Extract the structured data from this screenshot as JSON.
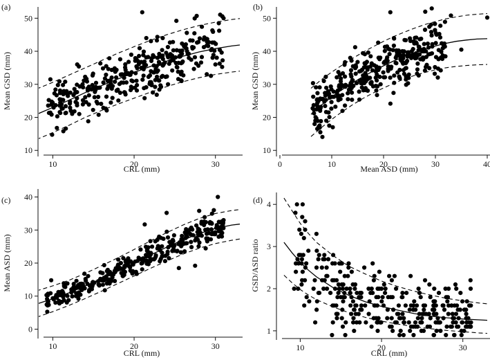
{
  "chart_data": [
    {
      "panel_label": "(a)",
      "type": "scatter",
      "xlabel": "CRL (mm)",
      "ylabel": "Mean GSD (mm)",
      "xlim": [
        7.5,
        33
      ],
      "ylim": [
        9,
        53
      ],
      "xticks": [
        10,
        20,
        30
      ],
      "yticks": [
        10,
        20,
        30,
        40,
        50
      ],
      "grid": false,
      "curves": {
        "fitted": [
          [
            8,
            20.9
          ],
          [
            10,
            23.0
          ],
          [
            12,
            25.2
          ],
          [
            14,
            27.5
          ],
          [
            16,
            29.6
          ],
          [
            18,
            31.6
          ],
          [
            20,
            33.6
          ],
          [
            22,
            35.4
          ],
          [
            24,
            37.0
          ],
          [
            26,
            38.5
          ],
          [
            28,
            39.8
          ],
          [
            30,
            40.8
          ],
          [
            32,
            41.6
          ],
          [
            33,
            41.9
          ]
        ],
        "upper": [
          [
            8,
            28.6
          ],
          [
            10,
            30.6
          ],
          [
            12,
            32.8
          ],
          [
            14,
            35.0
          ],
          [
            16,
            37.2
          ],
          [
            18,
            39.4
          ],
          [
            20,
            41.4
          ],
          [
            22,
            43.3
          ],
          [
            24,
            45.0
          ],
          [
            26,
            46.5
          ],
          [
            28,
            47.8
          ],
          [
            30,
            48.8
          ],
          [
            32,
            49.6
          ],
          [
            33,
            49.9
          ]
        ],
        "lower": [
          [
            8,
            13.3
          ],
          [
            10,
            15.4
          ],
          [
            12,
            17.6
          ],
          [
            14,
            20.0
          ],
          [
            16,
            22.1
          ],
          [
            18,
            24.0
          ],
          [
            20,
            25.8
          ],
          [
            22,
            27.6
          ],
          [
            24,
            29.3
          ],
          [
            26,
            30.8
          ],
          [
            28,
            32.0
          ],
          [
            30,
            33.0
          ],
          [
            32,
            33.7
          ],
          [
            33,
            34.0
          ]
        ]
      },
      "points": {
        "generator": "fit_with_scatter",
        "seed": 101,
        "n": 340,
        "x_range": [
          9.2,
          31
        ],
        "spread": 4.4,
        "highlights": [
          [
            21,
            51.8
          ],
          [
            27.7,
            50.7
          ],
          [
            11.3,
            15.8
          ],
          [
            25.2,
            49.2
          ],
          [
            31,
            50.0
          ],
          [
            9.7,
            31.5
          ],
          [
            30,
            36
          ],
          [
            21.5,
            44
          ],
          [
            13,
            36
          ],
          [
            10.5,
            16.8
          ]
        ]
      }
    },
    {
      "panel_label": "(b)",
      "type": "scatter",
      "xlabel": "Mean ASD (mm)",
      "ylabel": "Mean GSD (mm)",
      "xlim": [
        0,
        40
      ],
      "ylim": [
        9,
        53
      ],
      "xticks": [
        0,
        10,
        20,
        30,
        40
      ],
      "yticks": [
        10,
        20,
        30,
        40,
        50
      ],
      "grid": false,
      "curves": {
        "fitted": [
          [
            6,
            20.9
          ],
          [
            8,
            23.7
          ],
          [
            10,
            26.2
          ],
          [
            12,
            28.4
          ],
          [
            14,
            30.4
          ],
          [
            16,
            32.3
          ],
          [
            18,
            34.0
          ],
          [
            20,
            35.6
          ],
          [
            22,
            37.1
          ],
          [
            24,
            38.4
          ],
          [
            26,
            39.6
          ],
          [
            28,
            40.7
          ],
          [
            30,
            41.6
          ],
          [
            32,
            42.4
          ],
          [
            34,
            43.0
          ],
          [
            36,
            43.4
          ],
          [
            38,
            43.7
          ],
          [
            40,
            43.8
          ]
        ],
        "upper": [
          [
            6,
            28.8
          ],
          [
            8,
            31.4
          ],
          [
            10,
            33.7
          ],
          [
            12,
            35.8
          ],
          [
            14,
            37.8
          ],
          [
            16,
            39.7
          ],
          [
            18,
            41.4
          ],
          [
            20,
            43.0
          ],
          [
            22,
            44.5
          ],
          [
            24,
            45.8
          ],
          [
            26,
            47.0
          ],
          [
            28,
            48.1
          ],
          [
            30,
            49.0
          ],
          [
            32,
            49.8
          ],
          [
            34,
            50.4
          ],
          [
            36,
            50.9
          ],
          [
            38,
            51.2
          ],
          [
            40,
            51.4
          ]
        ],
        "lower": [
          [
            6,
            14.2
          ],
          [
            8,
            16.9
          ],
          [
            10,
            19.4
          ],
          [
            12,
            21.7
          ],
          [
            14,
            23.8
          ],
          [
            16,
            25.7
          ],
          [
            18,
            27.4
          ],
          [
            20,
            28.9
          ],
          [
            22,
            30.3
          ],
          [
            24,
            31.6
          ],
          [
            26,
            32.7
          ],
          [
            28,
            33.6
          ],
          [
            30,
            34.4
          ],
          [
            32,
            35.0
          ],
          [
            34,
            35.4
          ],
          [
            36,
            35.7
          ],
          [
            38,
            35.9
          ],
          [
            40,
            36.0
          ]
        ]
      },
      "points": {
        "generator": "fit_with_scatter",
        "seed": 202,
        "n": 340,
        "x_range": [
          6.3,
          32
        ],
        "spread": 4.3,
        "highlights": [
          [
            21.3,
            51.8
          ],
          [
            40,
            50.2
          ],
          [
            33,
            50.8
          ],
          [
            35,
            40.5
          ],
          [
            7.8,
            15.5
          ],
          [
            10.2,
            17
          ],
          [
            22,
            44
          ],
          [
            28,
            46.5
          ]
        ]
      }
    },
    {
      "panel_label": "(c)",
      "type": "scatter",
      "xlabel": "CRL (mm)",
      "ylabel": "Mean ASD (mm)",
      "xlim": [
        7.5,
        33
      ],
      "ylim": [
        -2,
        42
      ],
      "xticks": [
        10,
        20,
        30
      ],
      "yticks": [
        0,
        10,
        20,
        30,
        40
      ],
      "grid": false,
      "curves": {
        "fitted": [
          [
            8,
            7.6
          ],
          [
            10,
            9.2
          ],
          [
            12,
            11.0
          ],
          [
            14,
            13.1
          ],
          [
            16,
            15.3
          ],
          [
            18,
            17.6
          ],
          [
            20,
            20.0
          ],
          [
            22,
            22.4
          ],
          [
            24,
            24.8
          ],
          [
            26,
            27.0
          ],
          [
            28,
            28.9
          ],
          [
            30,
            30.5
          ],
          [
            32,
            31.5
          ],
          [
            33,
            31.8
          ]
        ],
        "upper": [
          [
            8,
            11.6
          ],
          [
            10,
            13.1
          ],
          [
            12,
            14.8
          ],
          [
            14,
            16.9
          ],
          [
            16,
            19.2
          ],
          [
            18,
            21.6
          ],
          [
            20,
            24.1
          ],
          [
            22,
            26.7
          ],
          [
            24,
            29.2
          ],
          [
            26,
            31.5
          ],
          [
            28,
            33.5
          ],
          [
            30,
            35.0
          ],
          [
            32,
            35.9
          ],
          [
            33,
            36.2
          ]
        ],
        "lower": [
          [
            8,
            3.6
          ],
          [
            10,
            5.3
          ],
          [
            12,
            7.2
          ],
          [
            14,
            9.3
          ],
          [
            16,
            11.5
          ],
          [
            18,
            13.8
          ],
          [
            20,
            16.1
          ],
          [
            22,
            18.4
          ],
          [
            24,
            20.6
          ],
          [
            26,
            22.7
          ],
          [
            28,
            24.5
          ],
          [
            30,
            25.9
          ],
          [
            32,
            26.9
          ],
          [
            33,
            27.3
          ]
        ]
      },
      "points": {
        "generator": "fit_with_scatter",
        "seed": 303,
        "n": 350,
        "x_range": [
          9.2,
          31
        ],
        "spread": 2.0,
        "highlights": [
          [
            30.3,
            40.0
          ],
          [
            28,
            35.8
          ],
          [
            21.3,
            31.7
          ],
          [
            24,
            35.2
          ],
          [
            27.5,
            19.2
          ],
          [
            9.8,
            14.8
          ],
          [
            25.5,
            18.5
          ],
          [
            31,
            33
          ]
        ]
      }
    },
    {
      "panel_label": "(d)",
      "type": "scatter",
      "xlabel": "CRL (mm)",
      "ylabel": "GSD/ASD ratio",
      "xlim": [
        7.5,
        33
      ],
      "ylim": [
        0.85,
        4.25
      ],
      "xticks": [
        10,
        20,
        30
      ],
      "yticks": [
        1,
        2,
        3,
        4
      ],
      "grid": false,
      "curves": {
        "fitted": [
          [
            8,
            3.1
          ],
          [
            9,
            2.85
          ],
          [
            10,
            2.63
          ],
          [
            11,
            2.44
          ],
          [
            12,
            2.28
          ],
          [
            14,
            2.03
          ],
          [
            16,
            1.84
          ],
          [
            18,
            1.69
          ],
          [
            20,
            1.58
          ],
          [
            22,
            1.49
          ],
          [
            24,
            1.41
          ],
          [
            26,
            1.35
          ],
          [
            28,
            1.31
          ],
          [
            30,
            1.28
          ],
          [
            32,
            1.26
          ],
          [
            33,
            1.25
          ]
        ],
        "upper": [
          [
            8,
            4.15
          ],
          [
            9,
            3.85
          ],
          [
            10,
            3.55
          ],
          [
            11,
            3.31
          ],
          [
            12,
            3.1
          ],
          [
            14,
            2.79
          ],
          [
            16,
            2.53
          ],
          [
            18,
            2.35
          ],
          [
            20,
            2.18
          ],
          [
            22,
            2.05
          ],
          [
            24,
            1.94
          ],
          [
            26,
            1.85
          ],
          [
            28,
            1.77
          ],
          [
            30,
            1.71
          ],
          [
            32,
            1.66
          ],
          [
            33,
            1.64
          ]
        ],
        "lower": [
          [
            8,
            2.32
          ],
          [
            9,
            2.14
          ],
          [
            10,
            1.98
          ],
          [
            11,
            1.85
          ],
          [
            12,
            1.74
          ],
          [
            14,
            1.57
          ],
          [
            16,
            1.43
          ],
          [
            18,
            1.32
          ],
          [
            20,
            1.23
          ],
          [
            22,
            1.16
          ],
          [
            24,
            1.1
          ],
          [
            26,
            1.05
          ],
          [
            28,
            1.01
          ],
          [
            30,
            0.98
          ],
          [
            32,
            0.95
          ],
          [
            33,
            0.94
          ]
        ]
      },
      "points": {
        "generator": "fit_with_scatter",
        "seed": 404,
        "n": 330,
        "x_range": [
          9.2,
          31
        ],
        "spread": 0.36,
        "y_round": 0.1,
        "highlights": [
          [
            9.6,
            4.0
          ],
          [
            10.3,
            4.0
          ],
          [
            9.4,
            3.8
          ],
          [
            10.6,
            3.6
          ],
          [
            12,
            3.3
          ],
          [
            21.6,
            2.3
          ],
          [
            31,
            1.2
          ]
        ]
      }
    }
  ]
}
